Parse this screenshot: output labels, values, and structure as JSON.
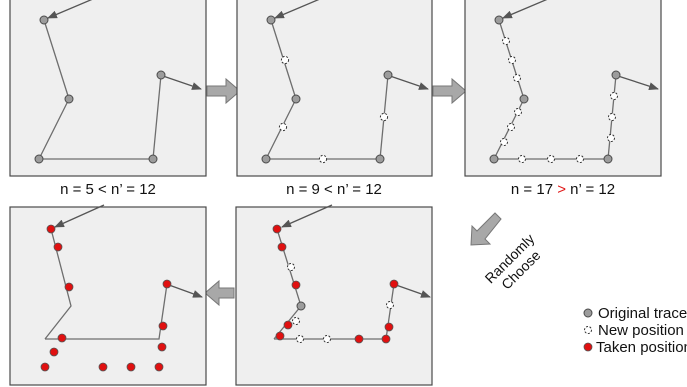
{
  "captions": [
    {
      "n": "n = 5 < n’ = 12"
    },
    {
      "n": "n = 9 < n’ = 12"
    },
    {
      "pre": "n = 17 ",
      "op": ">",
      "post": " n’ = 12"
    }
  ],
  "random_choose": [
    "Randomly",
    "Choose"
  ],
  "legend": {
    "original": "Original trace",
    "new": "New position",
    "taken": "Taken position"
  },
  "colors": {
    "panel_fill": "#efefef",
    "panel_stroke": "#4a4a4a",
    "line": "#6e6e6e",
    "original_dot": "#9c9c9c",
    "taken_dot": "#e01010",
    "arrow": "#a8a8a8",
    "highlight": "#e01818"
  }
}
